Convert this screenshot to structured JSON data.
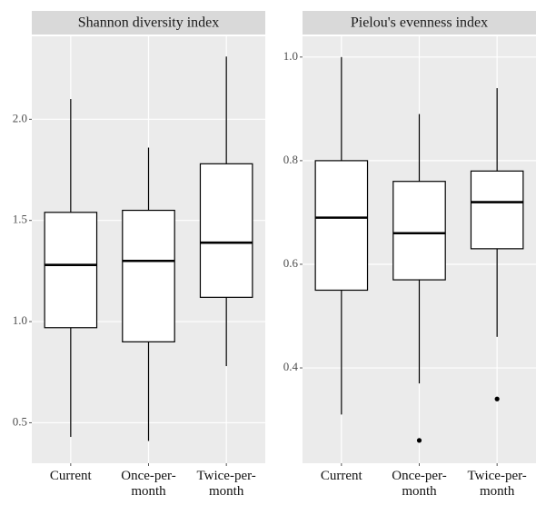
{
  "chart_data": [
    {
      "type": "box",
      "title": "Shannon diversity index",
      "categories": [
        "Current",
        "Once-per-month",
        "Twice-per-month"
      ],
      "boxes": [
        {
          "min": 0.43,
          "q1": 0.97,
          "median": 1.28,
          "q3": 1.54,
          "max": 2.1,
          "outliers": []
        },
        {
          "min": 0.41,
          "q1": 0.9,
          "median": 1.3,
          "q3": 1.55,
          "max": 1.86,
          "outliers": []
        },
        {
          "min": 0.78,
          "q1": 1.12,
          "median": 1.39,
          "q3": 1.78,
          "max": 2.31,
          "outliers": []
        }
      ],
      "ylim": [
        0.3,
        2.41
      ],
      "yticks": [
        {
          "value": 0.5,
          "label": "0.5"
        },
        {
          "value": 1,
          "label": "1.0"
        },
        {
          "value": 1.5,
          "label": "1.5"
        },
        {
          "value": 2,
          "label": "2.0"
        }
      ],
      "grid": true
    },
    {
      "type": "box",
      "title": "Pielou's evenness index",
      "categories": [
        "Current",
        "Once-per-month",
        "Twice-per-month"
      ],
      "boxes": [
        {
          "min": 0.31,
          "q1": 0.55,
          "median": 0.69,
          "q3": 0.8,
          "max": 1.0,
          "outliers": []
        },
        {
          "min": 0.37,
          "q1": 0.57,
          "median": 0.66,
          "q3": 0.76,
          "max": 0.89,
          "outliers": [
            0.26
          ]
        },
        {
          "min": 0.46,
          "q1": 0.63,
          "median": 0.72,
          "q3": 0.78,
          "max": 0.94,
          "outliers": [
            0.34
          ]
        }
      ],
      "ylim": [
        0.216,
        1.04
      ],
      "yticks": [
        {
          "value": 0.4,
          "label": "0.4"
        },
        {
          "value": 0.6,
          "label": "0.6"
        },
        {
          "value": 0.8,
          "label": "0.8"
        },
        {
          "value": 1,
          "label": "1.0"
        }
      ],
      "grid": true
    }
  ]
}
